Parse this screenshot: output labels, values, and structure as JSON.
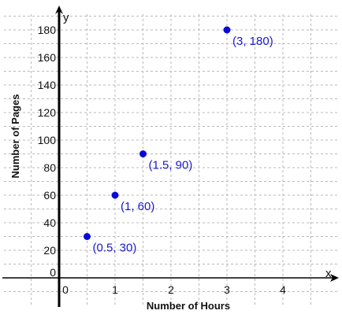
{
  "chart_data": {
    "type": "scatter",
    "x": [
      0.5,
      1,
      1.5,
      3
    ],
    "y": [
      30,
      60,
      90,
      180
    ],
    "point_labels": [
      "(0.5, 30)",
      "(1, 60)",
      "(1.5, 90)",
      "(3, 180)"
    ],
    "xlabel": "Number of Hours",
    "ylabel": "Number of Pages",
    "x_axis_name": "x",
    "y_axis_name": "y",
    "x_ticks": [
      0,
      1,
      2,
      3,
      4
    ],
    "x_tick_labels": [
      "0",
      "1",
      "2",
      "3",
      "4"
    ],
    "y_ticks": [
      0,
      20,
      40,
      60,
      80,
      100,
      120,
      140,
      160,
      180
    ],
    "y_tick_labels": [
      "0",
      "20",
      "40",
      "60",
      "80",
      "100",
      "120",
      "140",
      "160",
      "180"
    ],
    "xlim": [
      -1.05,
      4.9
    ],
    "ylim": [
      -20,
      195
    ],
    "grid": true,
    "point_color": "#0a0ad6",
    "label_color": "#1a1acc"
  }
}
